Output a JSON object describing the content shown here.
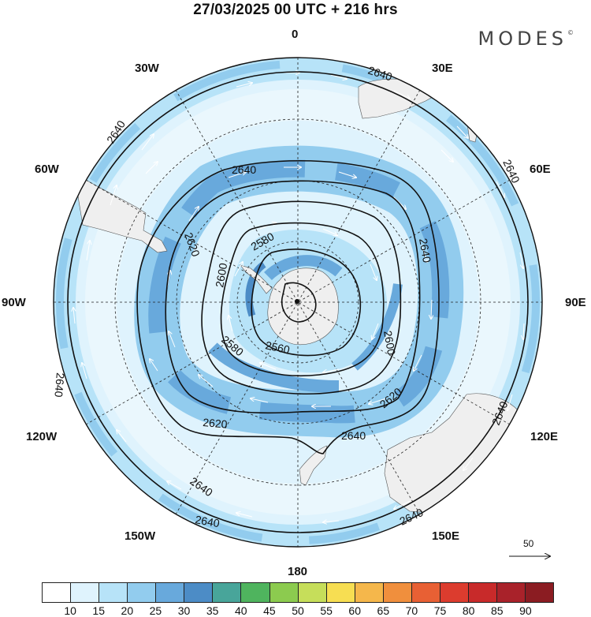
{
  "title": "27/03/2025  00 UTC  + 216 hrs",
  "brand": "MODES",
  "brand_mark": "©",
  "longitude_labels": {
    "n": "0",
    "e30": "30E",
    "e60": "60E",
    "e90": "90E",
    "e120": "120E",
    "e150": "150E",
    "s": "180",
    "w150": "150W",
    "w120": "120W",
    "w90": "90W",
    "w60": "60W",
    "w30": "30W"
  },
  "contour_labels": [
    "2640",
    "2640",
    "2640",
    "2640",
    "2640",
    "2640",
    "2640",
    "2640",
    "2640",
    "2620",
    "2620",
    "2620",
    "2600",
    "2600",
    "2580",
    "2580",
    "2560",
    "2640",
    "2640"
  ],
  "reference_vector": {
    "value": "50"
  },
  "legend": {
    "ticks": [
      "10",
      "15",
      "20",
      "25",
      "30",
      "35",
      "40",
      "45",
      "50",
      "55",
      "60",
      "65",
      "70",
      "75",
      "80",
      "85",
      "90"
    ],
    "colors": [
      "#ffffff",
      "#dff3fd",
      "#b7e3f8",
      "#92ccee",
      "#68a9dc",
      "#4c8cc6",
      "#48a59a",
      "#4fb45e",
      "#8ccb4f",
      "#c6de5a",
      "#f7de52",
      "#f5b74b",
      "#f08f3d",
      "#e86034",
      "#dc3c2e",
      "#c82a2a",
      "#a9222a",
      "#8b1c22"
    ]
  },
  "shading": {
    "outer_ring_color": "#b7e3f8",
    "jet_color": "#92ccee",
    "jet_core_color": "#68a9dc",
    "land_color": "#efefef"
  }
}
